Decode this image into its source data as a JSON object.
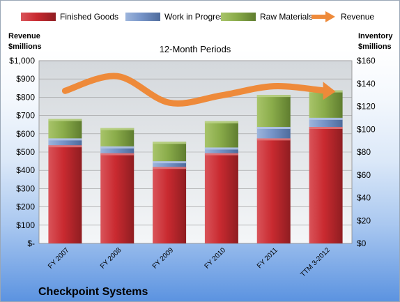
{
  "chart_data": {
    "type": "bar",
    "stacked": true,
    "subtitle": "12-Month Periods",
    "company": "Checkpoint Systems",
    "left_axis_title": [
      "Revenue",
      "$millions"
    ],
    "right_axis_title": [
      "Inventory",
      "$millions"
    ],
    "categories": [
      "FY 2007",
      "FY 2008",
      "FY 2009",
      "FY 2010",
      "FY 2011",
      "TTM 3-2012"
    ],
    "left_ylim": [
      0,
      1000
    ],
    "right_ylim": [
      0,
      160
    ],
    "left_ticks": [
      "$-",
      "$100",
      "$200",
      "$300",
      "$400",
      "$500",
      "$600",
      "$700",
      "$800",
      "$900",
      "$1,000"
    ],
    "right_ticks": [
      "$0",
      "$20",
      "$40",
      "$60",
      "$80",
      "$100",
      "$120",
      "$140",
      "$160"
    ],
    "legend_position": "top",
    "series": [
      {
        "name": "Finished Goods",
        "axis": "right",
        "color": "#c0262b",
        "values": [
          86,
          79,
          67,
          79,
          92,
          102
        ]
      },
      {
        "name": "Work in Progress",
        "axis": "right",
        "color": "#6f8fc4",
        "values": [
          6,
          6,
          5,
          5,
          10,
          8
        ]
      },
      {
        "name": "Raw Materials",
        "axis": "right",
        "color": "#8aac4a",
        "values": [
          17,
          16,
          17,
          23,
          28,
          24
        ]
      },
      {
        "name": "Revenue",
        "axis": "left",
        "color": "#ee8a3a",
        "type": "line",
        "values": [
          835,
          915,
          770,
          810,
          860,
          835
        ]
      }
    ]
  }
}
